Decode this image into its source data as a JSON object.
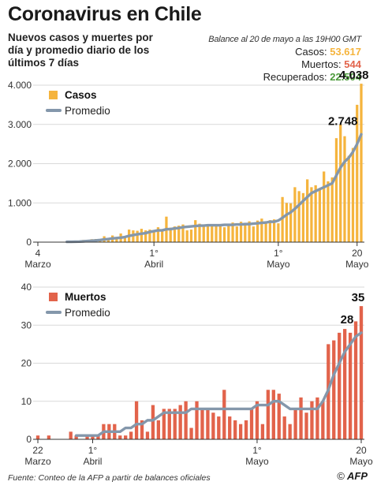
{
  "title": "Coronavirus en Chile",
  "subtitle": "Nuevos casos y muertes por día y promedio diario de los últimos 7 días",
  "balance": {
    "asof": "Balance al 20 de mayo a las 19H00 GMT",
    "casos_label": "Casos:",
    "casos_value": "53.617",
    "muertos_label": "Muertos:",
    "muertos_value": "544",
    "recuperados_label": "Recuperados:",
    "recuperados_value": "22.504"
  },
  "colors": {
    "casos": "#f5b43d",
    "muertos": "#e2634b",
    "recuperados": "#4b9a3a",
    "promedio": "#8497ab"
  },
  "footer": "Fuente: Conteo de la AFP a partir de balances oficiales",
  "logo": "AFP",
  "logo_copy": "©",
  "chart_data": [
    {
      "type": "bar",
      "legend": [
        "Casos",
        "Promedio"
      ],
      "x_labels": [
        {
          "index": 0,
          "line1": "4",
          "line2": "Marzo"
        },
        {
          "index": 28,
          "line1": "1°",
          "line2": "Abril"
        },
        {
          "index": 58,
          "line1": "1°",
          "line2": "Mayo"
        },
        {
          "index": 77,
          "line1": "20",
          "line2": "Mayo"
        }
      ],
      "ylim": [
        0,
        4000
      ],
      "yticks": [
        {
          "v": 0,
          "label": "0"
        },
        {
          "v": 1000,
          "label": "1.000"
        },
        {
          "v": 2000,
          "label": "2.000"
        },
        {
          "v": 3000,
          "label": "3.000"
        },
        {
          "v": 4000,
          "label": "4.000"
        }
      ],
      "annotations": [
        {
          "label": "4.038",
          "index": 77,
          "value": 4038
        },
        {
          "label": "2.748",
          "index": 77,
          "value": 2748
        }
      ],
      "series": [
        {
          "name": "Casos",
          "values": [
            1,
            0,
            2,
            3,
            1,
            3,
            4,
            6,
            10,
            13,
            20,
            55,
            40,
            75,
            80,
            60,
            150,
            100,
            170,
            110,
            220,
            130,
            320,
            300,
            290,
            340,
            300,
            320,
            310,
            380,
            320,
            650,
            370,
            400,
            420,
            450,
            300,
            320,
            560,
            470,
            400,
            440,
            460,
            420,
            450,
            380,
            430,
            500,
            400,
            520,
            480,
            530,
            400,
            550,
            600,
            500,
            560,
            580,
            480,
            1150,
            1000,
            990,
            1400,
            1300,
            1250,
            1600,
            1400,
            1450,
            1350,
            1800,
            1550,
            1650,
            2650,
            3000,
            2700,
            2200,
            2400,
            3500,
            4038
          ]
        },
        {
          "name": "Promedio",
          "values": [
            null,
            null,
            null,
            null,
            null,
            null,
            null,
            8,
            9,
            12,
            14,
            20,
            28,
            37,
            45,
            53,
            70,
            80,
            95,
            105,
            115,
            130,
            160,
            180,
            200,
            215,
            230,
            260,
            280,
            300,
            300,
            330,
            330,
            350,
            360,
            380,
            390,
            400,
            410,
            420,
            420,
            430,
            430,
            430,
            430,
            440,
            440,
            440,
            450,
            450,
            460,
            460,
            470,
            480,
            490,
            500,
            520,
            520,
            550,
            620,
            700,
            760,
            850,
            950,
            1050,
            1150,
            1250,
            1300,
            1350,
            1400,
            1450,
            1500,
            1700,
            1900,
            2050,
            2150,
            2300,
            2500,
            2748
          ]
        }
      ]
    },
    {
      "type": "bar",
      "legend": [
        "Muertos",
        "Promedio"
      ],
      "x_labels": [
        {
          "index": 0,
          "line1": "22",
          "line2": "Marzo"
        },
        {
          "index": 10,
          "line1": "1°",
          "line2": "Abril"
        },
        {
          "index": 40,
          "line1": "1°",
          "line2": "Mayo"
        },
        {
          "index": 59,
          "line1": "20",
          "line2": "Mayo"
        }
      ],
      "ylim": [
        0,
        40
      ],
      "yticks": [
        {
          "v": 0,
          "label": "0"
        },
        {
          "v": 10,
          "label": "10"
        },
        {
          "v": 20,
          "label": "20"
        },
        {
          "v": 30,
          "label": "30"
        },
        {
          "v": 40,
          "label": "40"
        }
      ],
      "annotations": [
        {
          "label": "35",
          "index": 59,
          "value": 35
        },
        {
          "label": "28",
          "index": 59,
          "value": 28
        }
      ],
      "series": [
        {
          "name": "Muertos",
          "values": [
            1,
            0,
            1,
            0,
            0,
            0,
            2,
            1,
            0,
            1,
            1,
            1,
            4,
            4,
            4,
            1,
            1,
            2,
            10,
            5,
            2,
            9,
            5,
            8,
            8,
            8,
            9,
            10,
            3,
            10,
            8,
            8,
            7,
            6,
            13,
            6,
            5,
            4,
            5,
            8,
            10,
            4,
            13,
            13,
            12,
            6,
            4,
            8,
            11,
            7,
            10,
            11,
            10,
            25,
            26,
            28,
            29,
            28,
            31,
            35
          ]
        },
        {
          "name": "Promedio",
          "values": [
            null,
            null,
            null,
            null,
            null,
            null,
            null,
            1,
            1,
            1,
            1,
            1,
            2,
            2,
            2,
            2,
            3,
            3,
            4,
            4,
            5,
            5,
            6,
            7,
            7,
            7,
            7,
            7,
            8,
            8,
            8,
            8,
            8,
            8,
            8,
            8,
            8,
            8,
            8,
            8,
            9,
            9,
            9,
            10,
            10,
            9,
            8,
            8,
            8,
            8,
            8,
            8,
            10,
            13,
            17,
            20,
            23,
            25,
            27,
            28
          ]
        }
      ]
    }
  ]
}
